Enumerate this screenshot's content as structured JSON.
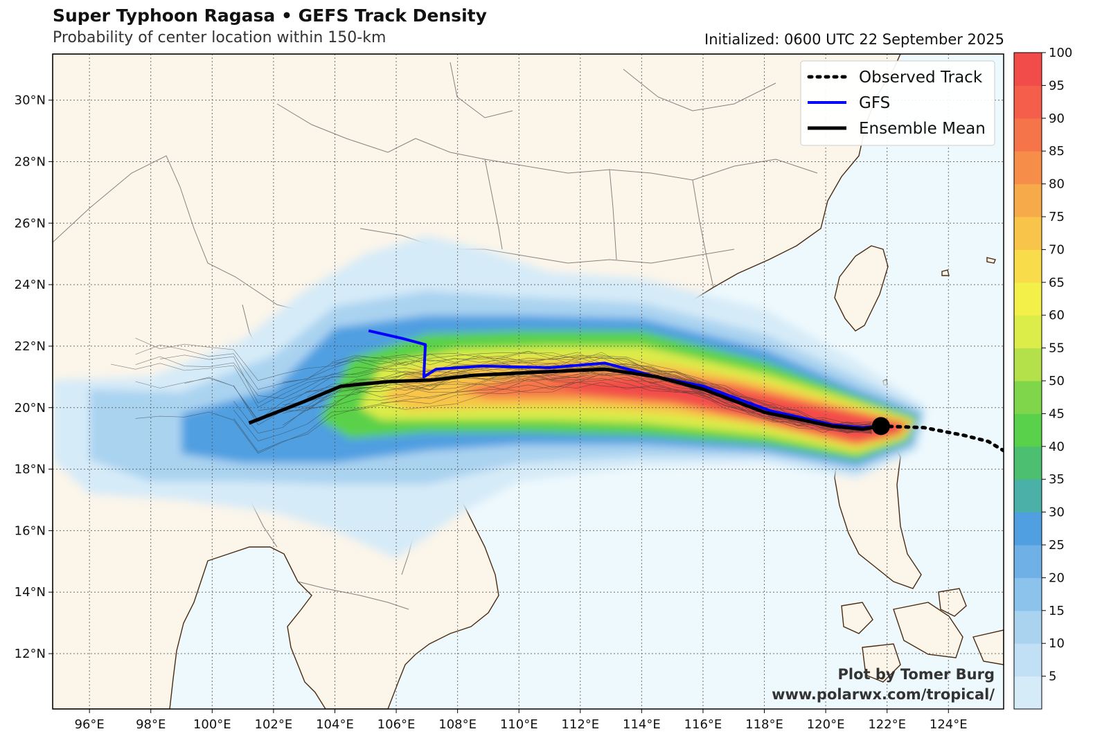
{
  "title": "Super Typhoon Ragasa • GEFS Track Density",
  "subtitle": "Probability of center location within 150-km",
  "initialized": "Initialized: 0600 UTC 22 September 2025",
  "credit": {
    "line1": "Plot by Tomer Burg",
    "line2": "www.polarwx.com/tropical/"
  },
  "legend": [
    {
      "label": "Observed Track",
      "style": "dotted",
      "color": "#000000"
    },
    {
      "label": "GFS",
      "style": "solid",
      "color": "#0000ff"
    },
    {
      "label": "Ensemble Mean",
      "style": "solid",
      "color": "#000000"
    }
  ],
  "colors": {
    "land": "#fbf5ea",
    "ocean": "#eef9fd",
    "coast": "#4a2a10",
    "grid": "#555555"
  },
  "map": {
    "lon_range": [
      94.8,
      125.8
    ],
    "lat_range": [
      10.2,
      31.5
    ],
    "lon_ticks": [
      96,
      98,
      100,
      102,
      104,
      106,
      108,
      110,
      112,
      114,
      116,
      118,
      120,
      122,
      124
    ],
    "lat_ticks": [
      12,
      14,
      16,
      18,
      20,
      22,
      24,
      26,
      28,
      30
    ],
    "lon_tick_labels": [
      "96°E",
      "98°E",
      "100°E",
      "102°E",
      "104°E",
      "106°E",
      "108°E",
      "110°E",
      "112°E",
      "114°E",
      "116°E",
      "118°E",
      "120°E",
      "122°E",
      "124°E"
    ],
    "lat_tick_labels": [
      "12°N",
      "14°N",
      "16°N",
      "18°N",
      "20°N",
      "22°N",
      "24°N",
      "26°N",
      "28°N",
      "30°N"
    ]
  },
  "colorbar": {
    "min": 0,
    "max": 100,
    "step": 5,
    "labels": [
      "5",
      "10",
      "15",
      "20",
      "25",
      "30",
      "35",
      "40",
      "45",
      "50",
      "55",
      "60",
      "65",
      "70",
      "75",
      "80",
      "85",
      "90",
      "95",
      "100"
    ],
    "colors": [
      "#d6ebf8",
      "#c2e0f5",
      "#aad3f0",
      "#8cc3ec",
      "#6fb0e6",
      "#4f9fe1",
      "#4ab0a8",
      "#4cc070",
      "#5ad14a",
      "#80d64a",
      "#b4e04a",
      "#dcec48",
      "#f4f04a",
      "#f8dc4a",
      "#f8c44a",
      "#f7aa4a",
      "#f68e4a",
      "#f6744a",
      "#f55e4a",
      "#f24c4a"
    ]
  },
  "tracks": {
    "observed": [
      [
        121.8,
        19.4
      ],
      [
        123.2,
        19.35
      ],
      [
        124.5,
        19.1
      ],
      [
        125.3,
        18.9
      ],
      [
        125.8,
        18.6
      ]
    ],
    "gfs": [
      [
        105.1,
        22.5
      ],
      [
        106.2,
        22.25
      ],
      [
        106.95,
        22.05
      ],
      [
        106.9,
        21.0
      ],
      [
        107.3,
        21.25
      ],
      [
        108.8,
        21.35
      ],
      [
        111.0,
        21.3
      ],
      [
        112.8,
        21.45
      ],
      [
        114.5,
        21.0
      ],
      [
        116.0,
        20.7
      ],
      [
        118.2,
        19.9
      ],
      [
        120.2,
        19.45
      ],
      [
        121.2,
        19.35
      ],
      [
        121.8,
        19.4
      ]
    ],
    "mean": [
      [
        101.2,
        19.5
      ],
      [
        103.0,
        20.2
      ],
      [
        104.2,
        20.7
      ],
      [
        105.8,
        20.85
      ],
      [
        107.2,
        20.9
      ],
      [
        108.5,
        21.05
      ],
      [
        110.5,
        21.15
      ],
      [
        112.8,
        21.25
      ],
      [
        114.5,
        21.0
      ],
      [
        116.0,
        20.6
      ],
      [
        118.0,
        19.85
      ],
      [
        120.2,
        19.4
      ],
      [
        121.2,
        19.3
      ],
      [
        121.8,
        19.4
      ]
    ]
  },
  "storm_position": [
    121.8,
    19.4
  ]
}
